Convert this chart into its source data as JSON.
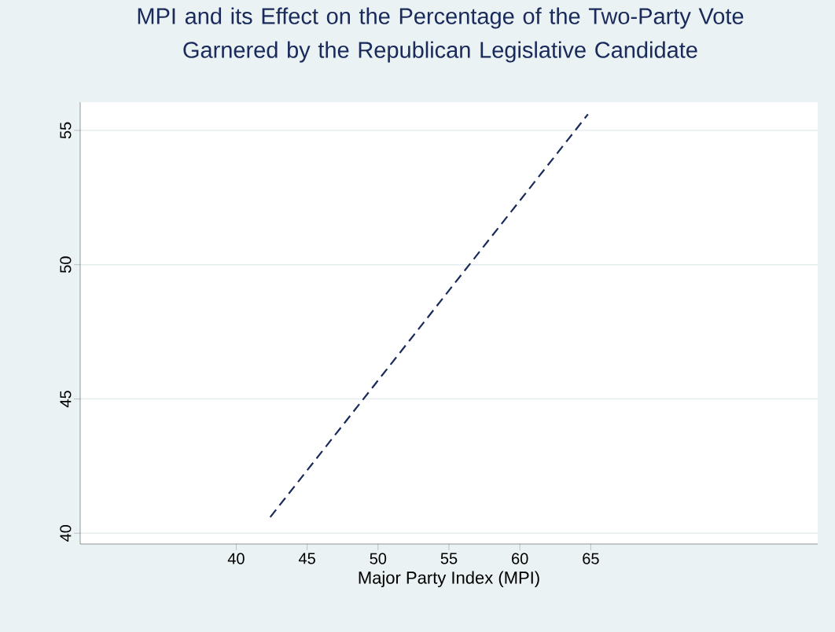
{
  "chart_data": {
    "type": "line",
    "title": "MPI and its Effect on the Percentage of the Two-Party Vote\nGarnered by the Republican Legislative Candidate",
    "xlabel": "Major Party Index (MPI)",
    "x": [
      42.4,
      64.8
    ],
    "series": [
      {
        "color": "#1a2a5a",
        "values": [
          40.6,
          55.6
        ]
      }
    ],
    "xlim": [
      29,
      81
    ],
    "ylim": [
      39.6,
      56.05
    ],
    "xticks": [
      40,
      45,
      50,
      55,
      60,
      65
    ],
    "yticks": [
      40,
      45,
      50,
      55
    ],
    "grid": "y",
    "line_style": "dashed",
    "marker": "none"
  }
}
